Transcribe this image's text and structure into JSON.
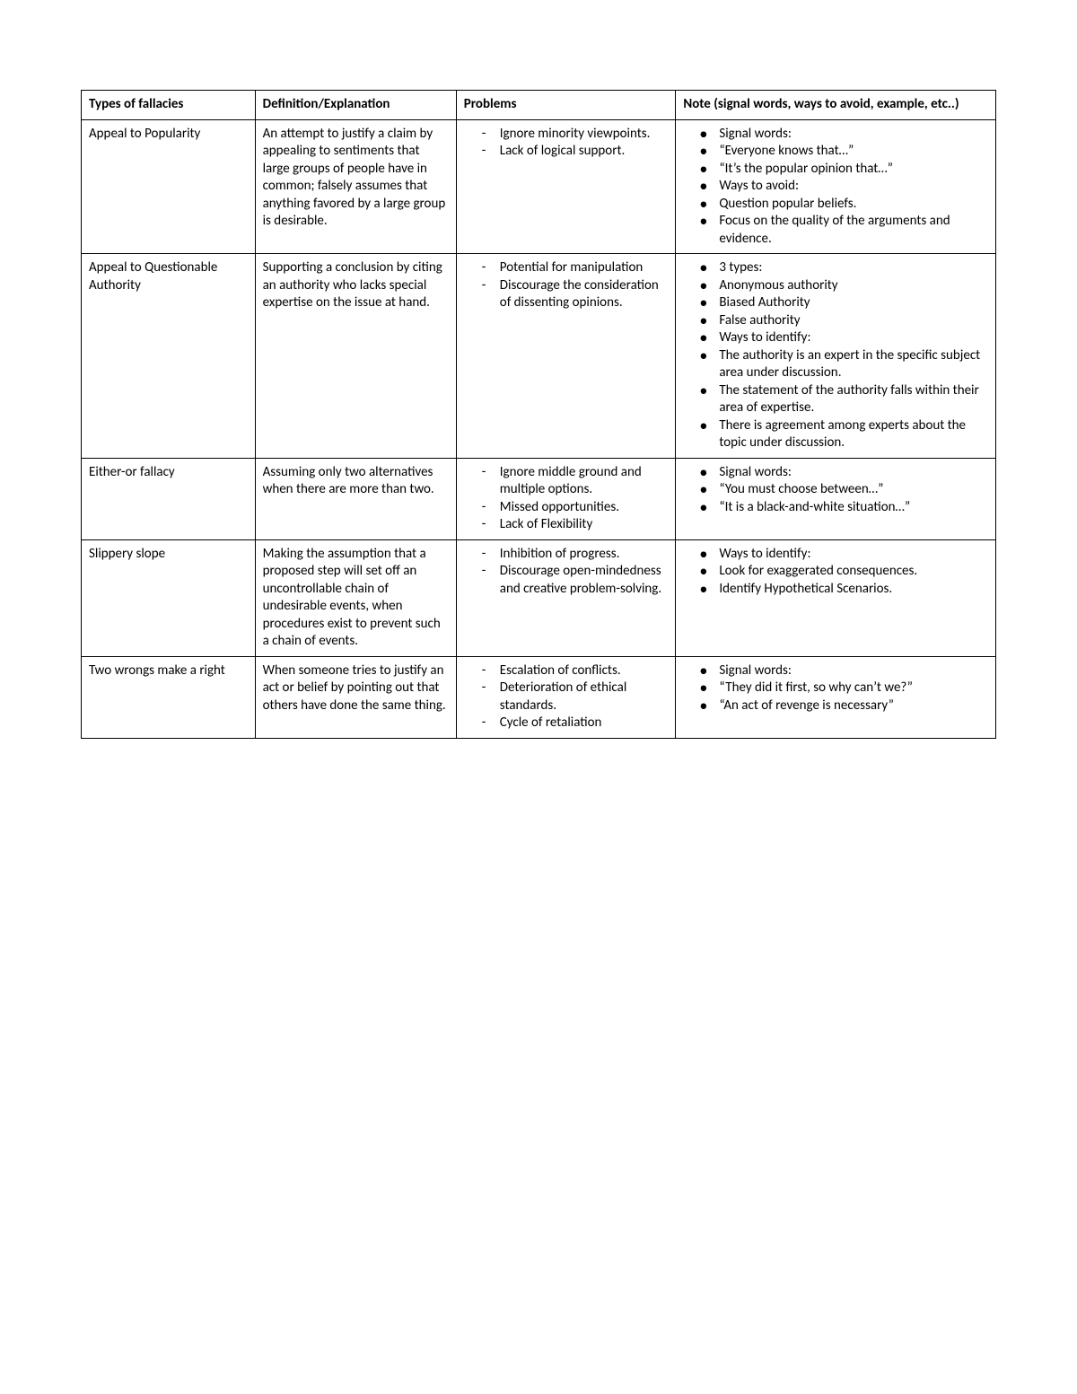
{
  "headers": {
    "col1": "Types of fallacies",
    "col2": "Definition/Explanation",
    "col3": "Problems",
    "col4": "Note (signal words, ways to avoid, example, etc..)"
  },
  "rows": [
    {
      "fallacy": "Appeal to Popularity",
      "definition": "An attempt to justify a claim by appealing to sentiments that large groups of people have in common; falsely assumes that anything favored by a large group is desirable.",
      "problems": [
        "Ignore minority viewpoints.",
        "Lack of logical support."
      ],
      "notes": [
        {
          "type": "bullet",
          "text": "Signal words:"
        },
        {
          "type": "dash",
          "text": "“Everyone knows that…”"
        },
        {
          "type": "dash",
          "text": "“It’s the popular opinion that…”"
        },
        {
          "type": "bullet",
          "text": "Ways to avoid:"
        },
        {
          "type": "dash",
          "text": "Question popular beliefs."
        },
        {
          "type": "dash",
          "text": "Focus on the quality of the arguments and evidence."
        }
      ]
    },
    {
      "fallacy": "Appeal to Questionable Authority",
      "definition": "Supporting a conclusion by citing an authority who lacks special expertise on the issue at hand.",
      "problems": [
        "Potential for manipulation",
        "Discourage the consideration of dissenting opinions."
      ],
      "notes": [
        {
          "type": "bullet",
          "text": "3 types:"
        },
        {
          "type": "dash",
          "text": "Anonymous authority"
        },
        {
          "type": "dash",
          "text": "Biased Authority"
        },
        {
          "type": "dash",
          "text": "False authority"
        },
        {
          "type": "bullet",
          "text": "Ways to identify:"
        },
        {
          "type": "dash",
          "text": "The authority is an expert in the specific subject area under discussion."
        },
        {
          "type": "dash",
          "text": "The statement of the authority falls within their area of expertise."
        },
        {
          "type": "dash",
          "text": "There is agreement among experts about the topic under discussion."
        }
      ]
    },
    {
      "fallacy": "Either-or fallacy",
      "definition": "Assuming only two alternatives when there are more than two.",
      "problems": [
        "Ignore middle ground and multiple options.",
        "Missed opportunities.",
        "Lack of Flexibility"
      ],
      "notes": [
        {
          "type": "bullet",
          "text": "Signal words:"
        },
        {
          "type": "dash",
          "text": "“You must choose between…”"
        },
        {
          "type": "dash",
          "text": "“It is a black-and-white situation…”"
        }
      ]
    },
    {
      "fallacy": "Slippery slope",
      "definition": "Making the assumption that a proposed step will set off an uncontrollable chain of undesirable events, when procedures exist to prevent such a chain of events.",
      "problems": [
        "Inhibition of progress.",
        "Discourage open-mindedness and creative problem-solving."
      ],
      "notes": [
        {
          "type": "bullet",
          "text": "Ways to identify:"
        },
        {
          "type": "dash",
          "text": "Look for exaggerated consequences."
        },
        {
          "type": "dash",
          "text": "Identify Hypothetical Scenarios."
        }
      ]
    },
    {
      "fallacy": "Two wrongs make a right",
      "definition": "When someone tries to justify an act or belief by pointing out that others have done the same thing.",
      "problems": [
        "Escalation of conflicts.",
        "Deterioration of ethical standards.",
        "Cycle of retaliation"
      ],
      "notes": [
        {
          "type": "bullet",
          "text": "Signal words:"
        },
        {
          "type": "dash",
          "text": "“They did it first, so why can’t we?”"
        },
        {
          "type": "dash",
          "text": "“An act of revenge is necessary”"
        }
      ]
    }
  ]
}
